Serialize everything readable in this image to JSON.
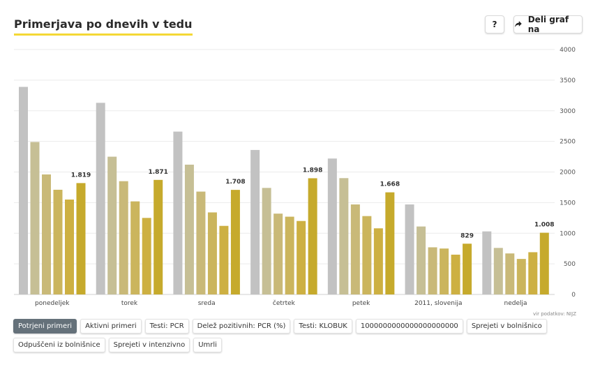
{
  "header": {
    "title": "Primerjava po dnevih v tedu",
    "help_label": "?",
    "share_label": "Deli graf na"
  },
  "source_label": "vir podatkov: NIJZ",
  "tabs": [
    {
      "label": "Potrjeni primeri",
      "active": true
    },
    {
      "label": "Aktivni primeri",
      "active": false
    },
    {
      "label": "Testi: PCR",
      "active": false
    },
    {
      "label": "Delež pozitivnih: PCR (%)",
      "active": false
    },
    {
      "label": "Testi: KLOBUK",
      "active": false
    },
    {
      "label": "1000000000000000000000",
      "active": false
    },
    {
      "label": "Sprejeti v bolnišnico",
      "active": false
    },
    {
      "label": "Odpuščeni iz bolnišnice",
      "active": false
    },
    {
      "label": "Sprejeti v intenzivno",
      "active": false
    },
    {
      "label": "Umrli",
      "active": false
    }
  ],
  "chart_data": {
    "type": "bar",
    "title": "Primerjava po dnevih v tedu",
    "categories": [
      "ponedeljek",
      "torek",
      "sreda",
      "četrtek",
      "petek",
      "2011, slovenija",
      "nedelja"
    ],
    "series_colors": [
      "#c2c2c2",
      "#c6bf95",
      "#c9b978",
      "#cbb55d",
      "#cdb042",
      "#c6aa2c"
    ],
    "series": [
      {
        "values": [
          3390,
          3130,
          2660,
          2360,
          2220,
          1470,
          1030
        ]
      },
      {
        "values": [
          2490,
          2250,
          2120,
          1740,
          1900,
          1110,
          760
        ]
      },
      {
        "values": [
          1960,
          1850,
          1680,
          1320,
          1470,
          770,
          670
        ]
      },
      {
        "values": [
          1710,
          1520,
          1340,
          1270,
          1280,
          750,
          580
        ]
      },
      {
        "values": [
          1550,
          1250,
          1120,
          1200,
          1080,
          650,
          690
        ]
      },
      {
        "values": [
          1819,
          1871,
          1708,
          1898,
          1668,
          829,
          1008
        ]
      }
    ],
    "data_labels": [
      "1.819",
      "1.871",
      "1.708",
      "1.898",
      "1.668",
      "829",
      "1.008"
    ],
    "yticks": [
      0,
      500,
      1000,
      1500,
      2000,
      2500,
      3000,
      3500,
      4000
    ],
    "ylim": [
      0,
      4000
    ],
    "xlabel": "",
    "ylabel": "",
    "grid": true,
    "y_axis_side": "right"
  }
}
